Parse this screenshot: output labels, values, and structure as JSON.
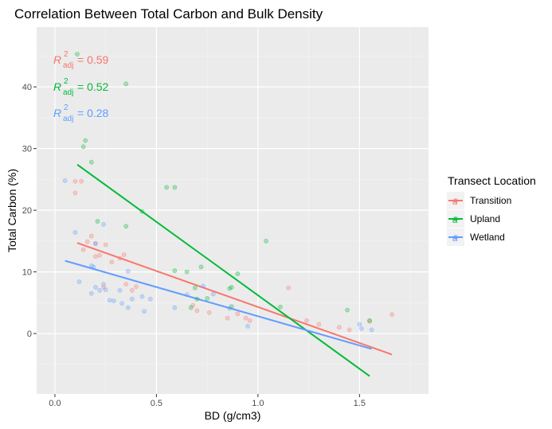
{
  "chart_data": {
    "type": "scatter",
    "title": "Correlation Between Total Carbon and Bulk Density",
    "xlabel": "BD (g/cm3)",
    "ylabel": "Total Carbon (%)",
    "xlim": [
      -0.09,
      1.84
    ],
    "ylim": [
      -9.8,
      49.7
    ],
    "x_ticks": [
      0,
      0.5,
      1,
      1.5
    ],
    "x_tick_labels": [
      "0.0",
      "0.5",
      "1.0",
      "1.5"
    ],
    "y_ticks": [
      0,
      10,
      20,
      30,
      40
    ],
    "y_tick_labels": [
      "0",
      "10",
      "20",
      "30",
      "40"
    ],
    "grid": true,
    "legend": {
      "title": "Transect Location",
      "position": "right",
      "glyph": "a"
    },
    "series": [
      {
        "name": "Transition",
        "color": "#F8766D",
        "points": [
          [
            0.1,
            24.7
          ],
          [
            0.13,
            24.7
          ],
          [
            0.1,
            22.8
          ],
          [
            0.16,
            14.9
          ],
          [
            0.18,
            15.8
          ],
          [
            0.2,
            14.6
          ],
          [
            0.14,
            13.6
          ],
          [
            0.22,
            12.7
          ],
          [
            0.2,
            12.5
          ],
          [
            0.25,
            14.4
          ],
          [
            0.28,
            11.6
          ],
          [
            0.32,
            12.2
          ],
          [
            0.34,
            12.8
          ],
          [
            0.38,
            7.0
          ],
          [
            0.4,
            7.6
          ],
          [
            0.24,
            7.5
          ],
          [
            0.35,
            8.0
          ],
          [
            0.68,
            4.6
          ],
          [
            0.7,
            3.7
          ],
          [
            0.76,
            3.4
          ],
          [
            0.85,
            2.5
          ],
          [
            0.9,
            3.2
          ],
          [
            0.94,
            2.5
          ],
          [
            0.96,
            2.1
          ],
          [
            1.15,
            7.4
          ],
          [
            1.24,
            2.1
          ],
          [
            1.3,
            1.5
          ],
          [
            1.4,
            1.0
          ],
          [
            1.45,
            0.6
          ],
          [
            1.66,
            3.1
          ],
          [
            1.55,
            2.0
          ]
        ],
        "fit": {
          "x": [
            0.11,
            1.66
          ],
          "y": [
            14.7,
            -3.4
          ]
        },
        "annotation": {
          "label": "R",
          "sup": "2",
          "sub": "adj",
          "value": " = 0.59"
        }
      },
      {
        "name": "Upland",
        "color": "#00BA38",
        "points": [
          [
            0.11,
            45.3
          ],
          [
            0.35,
            40.5
          ],
          [
            0.15,
            31.3
          ],
          [
            0.14,
            30.3
          ],
          [
            0.18,
            27.8
          ],
          [
            0.21,
            18.2
          ],
          [
            0.35,
            17.4
          ],
          [
            0.43,
            19.8
          ],
          [
            0.55,
            23.7
          ],
          [
            0.59,
            23.7
          ],
          [
            0.59,
            10.2
          ],
          [
            0.65,
            10.0
          ],
          [
            0.72,
            10.8
          ],
          [
            0.67,
            4.2
          ],
          [
            0.69,
            7.4
          ],
          [
            0.7,
            5.6
          ],
          [
            0.75,
            5.7
          ],
          [
            0.86,
            7.3
          ],
          [
            0.87,
            7.5
          ],
          [
            0.9,
            9.7
          ],
          [
            1.04,
            15.0
          ],
          [
            1.11,
            4.3
          ],
          [
            0.87,
            4.4
          ],
          [
            1.44,
            3.8
          ],
          [
            1.55,
            2.1
          ]
        ],
        "fit": {
          "x": [
            0.11,
            1.55
          ],
          "y": [
            27.4,
            -6.9
          ]
        },
        "annotation": {
          "label": "R",
          "sup": "2",
          "sub": "adj",
          "value": " = 0.52"
        }
      },
      {
        "name": "Wetland",
        "color": "#619CFF",
        "points": [
          [
            0.05,
            24.8
          ],
          [
            0.1,
            16.4
          ],
          [
            0.18,
            11.0
          ],
          [
            0.19,
            10.8
          ],
          [
            0.2,
            7.5
          ],
          [
            0.22,
            7.0
          ],
          [
            0.24,
            8.0
          ],
          [
            0.25,
            7.1
          ],
          [
            0.18,
            6.5
          ],
          [
            0.12,
            8.4
          ],
          [
            0.27,
            5.4
          ],
          [
            0.29,
            5.3
          ],
          [
            0.32,
            7.0
          ],
          [
            0.33,
            4.9
          ],
          [
            0.36,
            10.1
          ],
          [
            0.36,
            4.2
          ],
          [
            0.38,
            5.6
          ],
          [
            0.43,
            6.0
          ],
          [
            0.44,
            3.6
          ],
          [
            0.47,
            5.6
          ],
          [
            0.2,
            14.6
          ],
          [
            0.59,
            4.2
          ],
          [
            0.65,
            6.3
          ],
          [
            0.73,
            7.7
          ],
          [
            0.78,
            6.4
          ],
          [
            0.86,
            4.1
          ],
          [
            0.95,
            1.2
          ],
          [
            1.5,
            1.5
          ],
          [
            1.51,
            0.8
          ],
          [
            1.56,
            0.6
          ],
          [
            0.24,
            17.7
          ]
        ],
        "fit": {
          "x": [
            0.05,
            1.56
          ],
          "y": [
            11.8,
            -2.5
          ]
        },
        "annotation": {
          "label": "R",
          "sup": "2",
          "sub": "adj",
          "value": " = 0.28"
        }
      }
    ]
  }
}
